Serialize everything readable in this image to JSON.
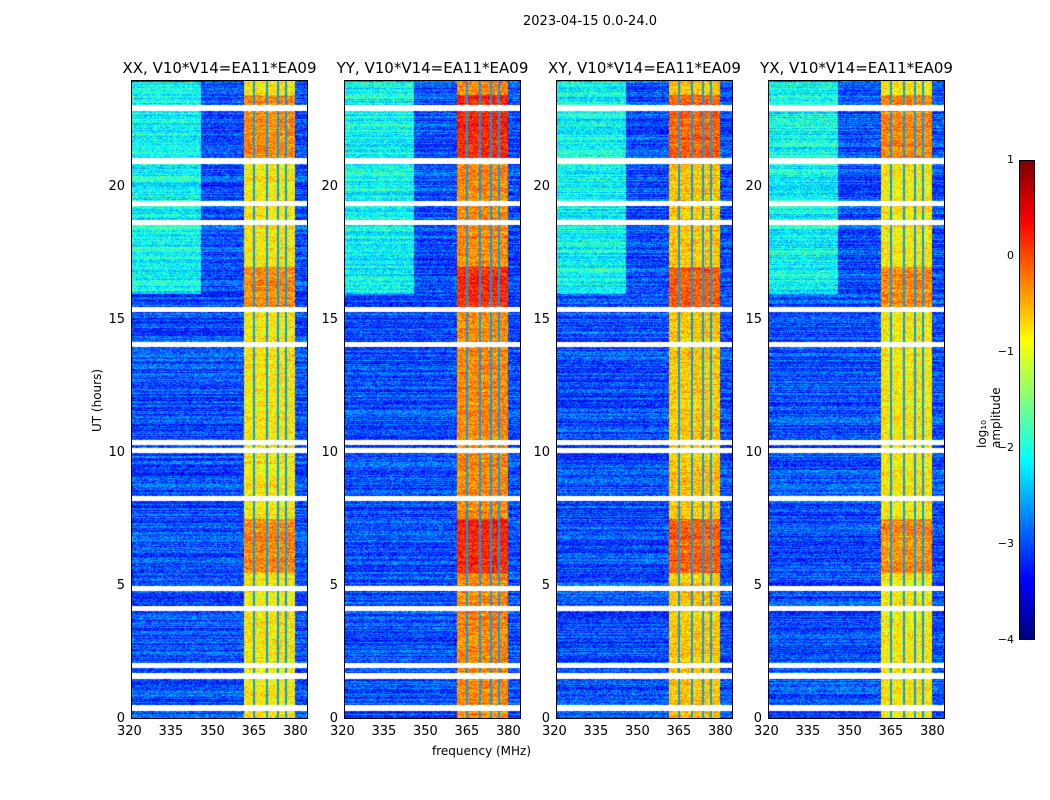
{
  "figure": {
    "suptitle": "2023-04-15 0.0-24.0",
    "ylabel": "UT (hours)",
    "xlabel": "frequency (MHz)",
    "colorbar_label": "log₁₀ amplitude"
  },
  "chart_data": {
    "type": "heatmap",
    "title": "2023-04-15 0.0-24.0",
    "panels": [
      {
        "title": "XX, V10*V14=EA11*EA09"
      },
      {
        "title": "YY, V10*V14=EA11*EA09"
      },
      {
        "title": "XY, V10*V14=EA11*EA09"
      },
      {
        "title": "YX, V10*V14=EA11*EA09"
      }
    ],
    "x": {
      "label": "frequency (MHz)",
      "range": [
        320,
        384
      ],
      "ticks": [
        320,
        335,
        350,
        365,
        380
      ]
    },
    "y": {
      "label": "UT (hours)",
      "range": [
        0,
        24
      ],
      "ticks": [
        0,
        5,
        10,
        15,
        20
      ]
    },
    "colorbar": {
      "label": "log10 amplitude",
      "range": [
        -4,
        1
      ],
      "ticks": [
        1,
        0,
        -1,
        -2,
        -3,
        -4
      ],
      "colormap": "jet"
    },
    "features": {
      "rfi_band_MHz": [
        360.7,
        379.6
      ],
      "band_level_log10": [
        -0.8,
        -0.3,
        -0.6,
        -0.8
      ],
      "background_level_log10": -3.0,
      "band_channel_gaps_MHz": [
        364.5,
        369.2,
        373.2,
        376.3
      ],
      "flagged_times_h": [
        0.4,
        1.6,
        2.0,
        4.15,
        4.9,
        8.3,
        10.1,
        10.4,
        14.1,
        15.4,
        18.7,
        19.4,
        21.0,
        23.0
      ],
      "bright_rfi_times_h": [
        [
          5.5,
          7.5
        ],
        [
          15.5,
          17.0
        ],
        [
          21.0,
          23.5
        ]
      ]
    }
  },
  "colors": {
    "frame": "#000000"
  }
}
